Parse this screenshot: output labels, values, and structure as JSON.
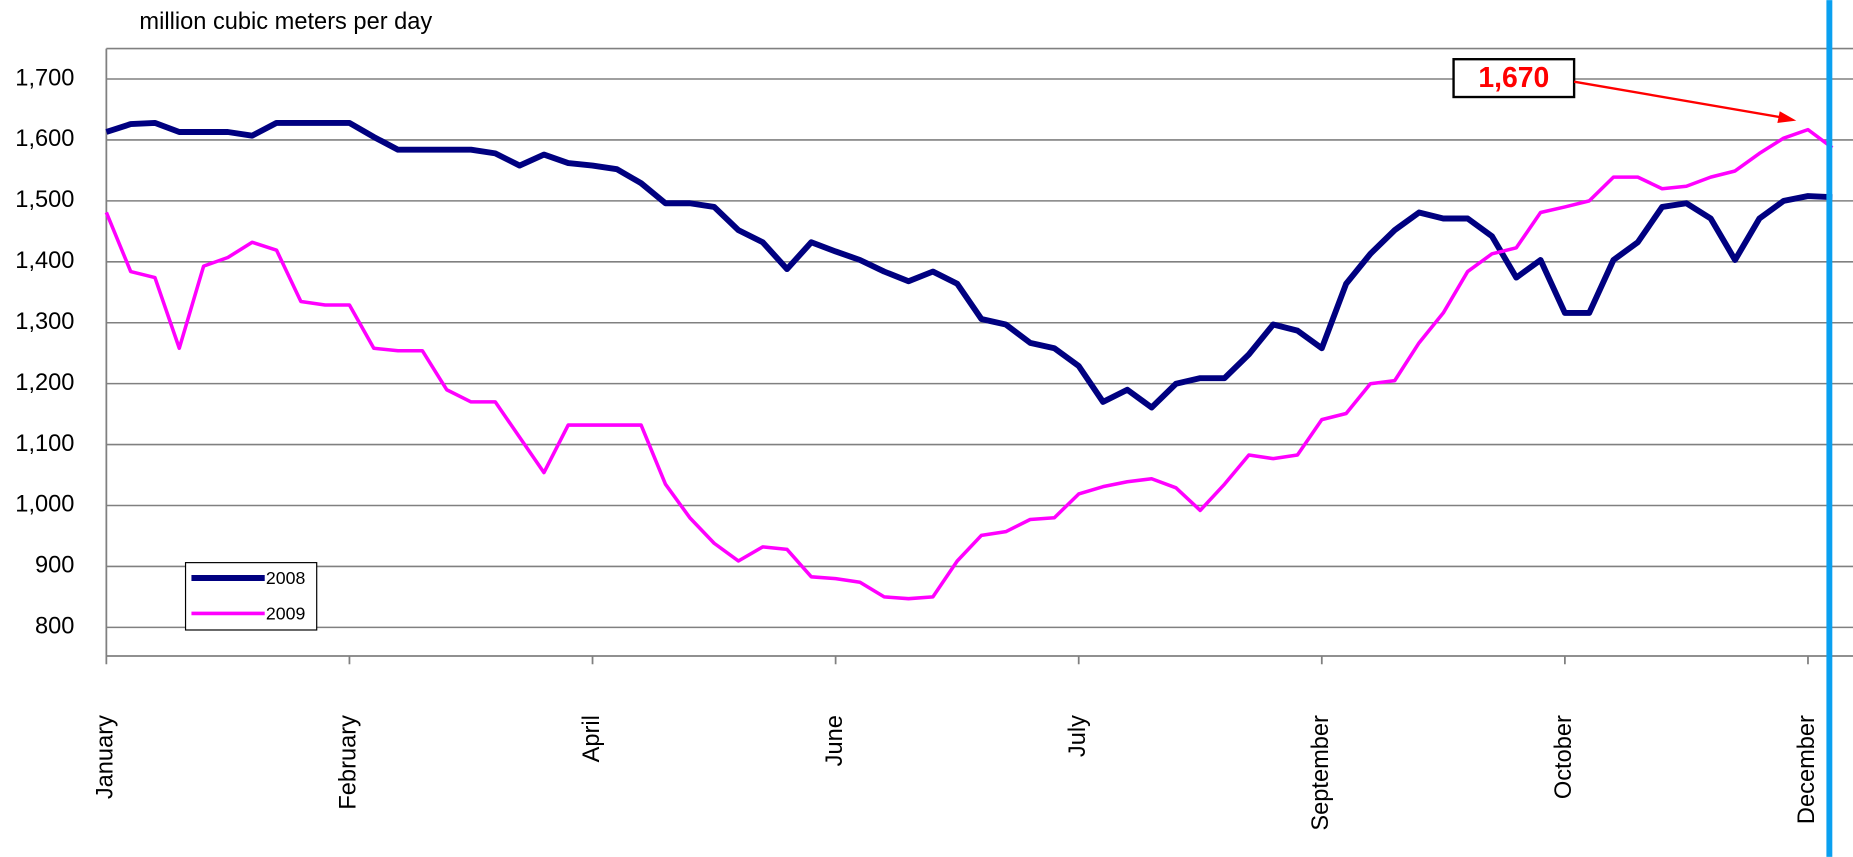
{
  "chart_data": {
    "type": "line",
    "y_axis_label": "million cubic meters per day",
    "annotation": "1,670",
    "categories": [
      "January",
      null,
      null,
      null,
      null,
      null,
      null,
      null,
      null,
      null,
      "February",
      null,
      null,
      null,
      null,
      null,
      null,
      null,
      null,
      null,
      "April",
      null,
      null,
      null,
      null,
      null,
      null,
      null,
      null,
      null,
      "June",
      null,
      null,
      null,
      null,
      null,
      null,
      null,
      null,
      null,
      "July",
      null,
      null,
      null,
      null,
      null,
      null,
      null,
      null,
      null,
      "September",
      null,
      null,
      null,
      null,
      null,
      null,
      null,
      null,
      null,
      "October",
      null,
      null,
      null,
      null,
      null,
      null,
      null,
      null,
      null,
      "December",
      null
    ],
    "series": [
      {
        "name": "2008",
        "color": "#000080",
        "values": [
          1613,
          1626,
          1628,
          1613,
          1613,
          1613,
          1607,
          1628,
          1628,
          1628,
          1628,
          1605,
          1584,
          1584,
          1584,
          1584,
          1578,
          1558,
          1576,
          1562,
          1558,
          1552,
          1529,
          1496,
          1496,
          1490,
          1452,
          1432,
          1388,
          1432,
          1417,
          1403,
          1384,
          1368,
          1384,
          1364,
          1306,
          1297,
          1267,
          1258,
          1229,
          1170,
          1190,
          1161,
          1200,
          1209,
          1209,
          1248,
          1297,
          1287,
          1258,
          1364,
          1413,
          1452,
          1481,
          1471,
          1471,
          1442,
          1374,
          1403,
          1316,
          1316,
          1403,
          1432,
          1490,
          1496,
          1471,
          1403,
          1471,
          1500,
          1508,
          1506
        ]
      },
      {
        "name": "2009",
        "color": "#ff00ff",
        "values": [
          1481,
          1384,
          1374,
          1258,
          1393,
          1407,
          1432,
          1419,
          1335,
          1329,
          1329,
          1258,
          1254,
          1254,
          1190,
          1170,
          1170,
          1112,
          1054,
          1132,
          1132,
          1132,
          1132,
          1035,
          980,
          938,
          909,
          932,
          928,
          883,
          880,
          874,
          850,
          847,
          850,
          909,
          951,
          957,
          977,
          980,
          1019,
          1031,
          1039,
          1044,
          1029,
          992,
          1035,
          1083,
          1077,
          1083,
          1141,
          1151,
          1200,
          1205,
          1267,
          1316,
          1384,
          1413,
          1423,
          1481,
          1490,
          1500,
          1539,
          1539,
          1520,
          1524,
          1539,
          1549,
          1578,
          1603,
          1617,
          1587
        ]
      }
    ],
    "ylim": [
      753,
      1750
    ],
    "yticks": [
      {
        "value": 800,
        "label": "800"
      },
      {
        "value": 900,
        "label": "900"
      },
      {
        "value": 1000,
        "label": "1,000"
      },
      {
        "value": 1100,
        "label": "1,100"
      },
      {
        "value": 1200,
        "label": "1,200"
      },
      {
        "value": 1300,
        "label": "1,300"
      },
      {
        "value": 1400,
        "label": "1,400"
      },
      {
        "value": 1500,
        "label": "1,500"
      },
      {
        "value": 1600,
        "label": "1,600"
      },
      {
        "value": 1700,
        "label": "1,700"
      }
    ],
    "grid": true
  }
}
